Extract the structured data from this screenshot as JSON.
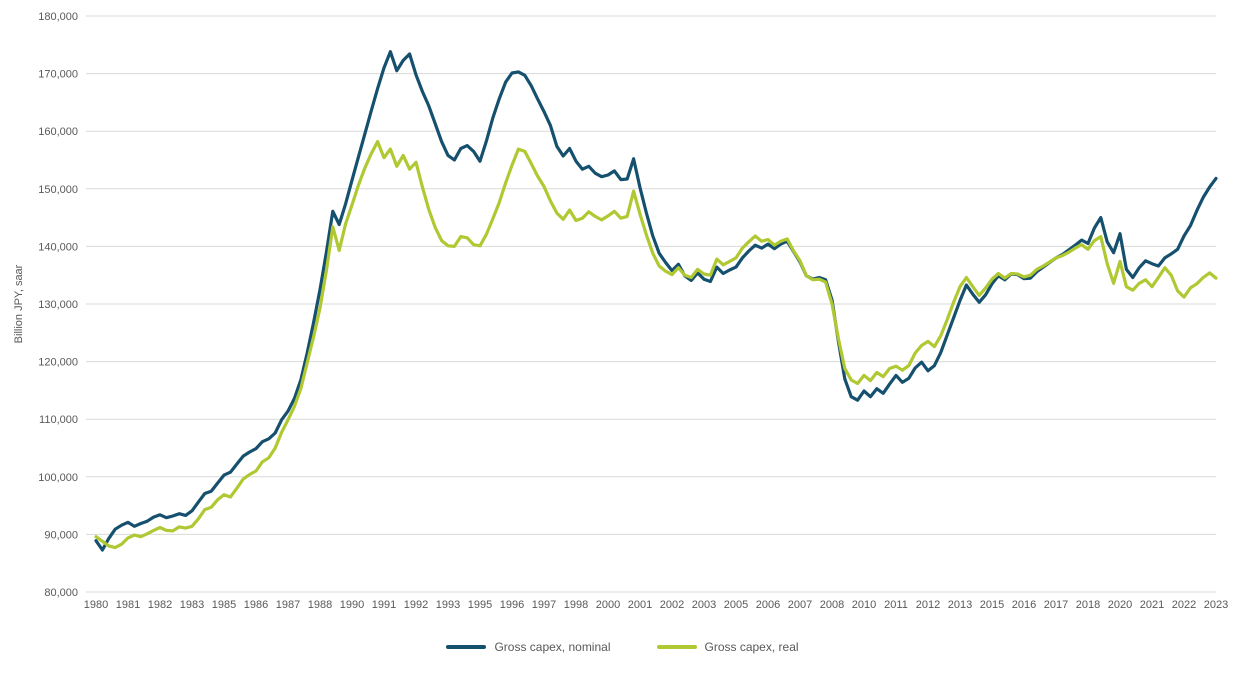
{
  "chart_data": {
    "type": "line",
    "title": "",
    "xlabel": "",
    "ylabel": "Billion JPY, saar",
    "frequency": "quarterly",
    "x_start": "1980Q1",
    "x_end": "2023Q4",
    "x_tick_labels": [
      "1980",
      "1981",
      "1982",
      "1983",
      "1985",
      "1986",
      "1987",
      "1988",
      "1990",
      "1991",
      "1992",
      "1993",
      "1995",
      "1996",
      "1997",
      "1998",
      "2000",
      "2001",
      "2002",
      "2003",
      "2005",
      "2006",
      "2007",
      "2008",
      "2010",
      "2011",
      "2012",
      "2013",
      "2015",
      "2016",
      "2017",
      "2018",
      "2020",
      "2021",
      "2022",
      "2023"
    ],
    "ylim": [
      80000,
      180000
    ],
    "y_tick_step": 10000,
    "grid": "horizontal",
    "gridline_color": "#d9d9d9",
    "tick_label_color": "#595959",
    "legend_position": "bottom",
    "series": [
      {
        "name": "Gross capex, nominal",
        "color": "#16506f",
        "values": [
          88900,
          87300,
          89300,
          90900,
          91600,
          92100,
          91400,
          91900,
          92300,
          93000,
          93400,
          92900,
          93200,
          93600,
          93300,
          94100,
          95600,
          97100,
          97500,
          98900,
          100300,
          100800,
          102200,
          103600,
          104300,
          104900,
          106100,
          106600,
          107600,
          109900,
          111400,
          113600,
          116800,
          121500,
          126800,
          132500,
          139000,
          146100,
          143800,
          147400,
          151500,
          155500,
          159500,
          163500,
          167400,
          171000,
          173800,
          170500,
          172300,
          173400,
          169800,
          166900,
          164400,
          161300,
          158200,
          155800,
          155000,
          157000,
          157500,
          156500,
          154800,
          158300,
          162300,
          165600,
          168500,
          170100,
          170300,
          169700,
          167900,
          165600,
          163400,
          161000,
          157400,
          155700,
          157000,
          154800,
          153400,
          153900,
          152700,
          152100,
          152400,
          153100,
          151600,
          151700,
          155200,
          150200,
          145800,
          141800,
          138800,
          137200,
          135800,
          136900,
          134900,
          134100,
          135400,
          134300,
          133900,
          136400,
          135300,
          135900,
          136400,
          138000,
          139200,
          140200,
          139700,
          140400,
          139600,
          140400,
          140900,
          139100,
          137300,
          134900,
          134300,
          134600,
          134200,
          130700,
          123500,
          117000,
          113900,
          113300,
          114900,
          113900,
          115300,
          114500,
          116100,
          117600,
          116400,
          117100,
          118900,
          119900,
          118400,
          119300,
          121600,
          124600,
          127600,
          130600,
          133300,
          131700,
          130300,
          131600,
          133500,
          134900,
          134200,
          135200,
          135100,
          134400,
          134500,
          135600,
          136400,
          137200,
          138000,
          138600,
          139400,
          140200,
          141100,
          140500,
          143200,
          145000,
          140800,
          138900,
          142200,
          136000,
          134600,
          136300,
          137500,
          137000,
          136600,
          138000,
          138700,
          139500,
          141800,
          143600,
          146200,
          148500,
          150300,
          151800
        ]
      },
      {
        "name": "Gross capex, real",
        "color": "#b0c832",
        "values": [
          89600,
          88800,
          88000,
          87700,
          88300,
          89400,
          89900,
          89600,
          90100,
          90700,
          91200,
          90700,
          90600,
          91300,
          91100,
          91400,
          92700,
          94300,
          94700,
          96000,
          96900,
          96500,
          98000,
          99600,
          100400,
          101000,
          102600,
          103300,
          105000,
          107700,
          109900,
          112200,
          115300,
          119800,
          124300,
          129300,
          135800,
          143400,
          139300,
          143900,
          147200,
          150600,
          153600,
          156100,
          158200,
          155400,
          156900,
          153900,
          155800,
          153400,
          154600,
          150300,
          146400,
          143300,
          141000,
          140100,
          140000,
          141700,
          141500,
          140300,
          140100,
          142100,
          144800,
          147600,
          151000,
          154100,
          156900,
          156500,
          154400,
          152200,
          150400,
          147900,
          145800,
          144700,
          146300,
          144500,
          144900,
          146000,
          145200,
          144600,
          145300,
          146100,
          144900,
          145200,
          149600,
          145600,
          142000,
          138800,
          136600,
          135700,
          135100,
          136300,
          135000,
          134600,
          136000,
          135200,
          135000,
          137800,
          136800,
          137400,
          138000,
          139700,
          140800,
          141800,
          140900,
          141200,
          140200,
          140900,
          141300,
          139200,
          137500,
          134900,
          134200,
          134300,
          133800,
          130000,
          124000,
          118800,
          116800,
          116200,
          117600,
          116700,
          118100,
          117400,
          118800,
          119200,
          118500,
          119300,
          121500,
          122800,
          123500,
          122600,
          124500,
          127300,
          130300,
          133000,
          134600,
          133000,
          131500,
          132800,
          134300,
          135300,
          134500,
          135300,
          135200,
          134700,
          135000,
          136000,
          136600,
          137300,
          138000,
          138400,
          139000,
          139700,
          140300,
          139500,
          141000,
          141700,
          137000,
          133600,
          137400,
          133000,
          132400,
          133600,
          134200,
          133000,
          134600,
          136300,
          135000,
          132300,
          131200,
          132800,
          133500,
          134600,
          135400,
          134500
        ]
      }
    ]
  }
}
